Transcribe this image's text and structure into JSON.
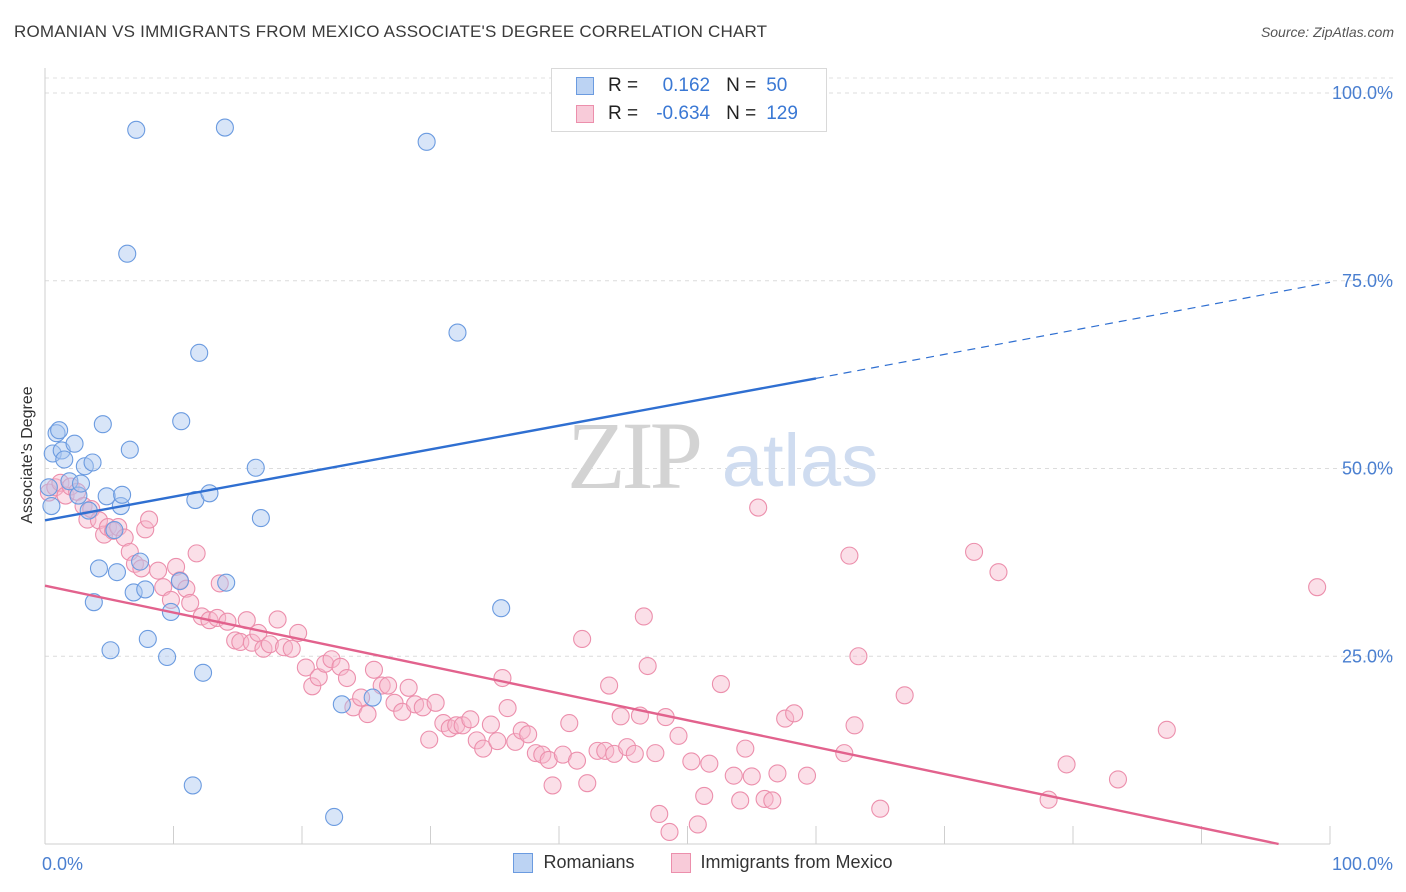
{
  "title": "ROMANIAN VS IMMIGRANTS FROM MEXICO ASSOCIATE'S DEGREE CORRELATION CHART",
  "source": "Source: ZipAtlas.com",
  "watermark": {
    "zip": "ZIP",
    "atlas": "atlas"
  },
  "legend": {
    "r_label": "R =",
    "n_label": "N =",
    "rows": [
      {
        "r": "0.162",
        "n": "50"
      },
      {
        "r": "-0.634",
        "n": "129"
      }
    ]
  },
  "colors": {
    "romanians_fill": "#a9c6ef",
    "romanians_stroke": "#6b9be0",
    "romanians_line": "#2f6fd1",
    "mexico_fill": "#f6b9cc",
    "mexico_stroke": "#ec8fac",
    "mexico_line": "#e2628d",
    "tick_text": "#4a7fd0"
  },
  "chart_data": {
    "type": "scatter",
    "title": "ROMANIAN VS IMMIGRANTS FROM MEXICO ASSOCIATE'S DEGREE CORRELATION CHART",
    "xlabel": "",
    "ylabel": "Associate's Degree",
    "xlim": [
      0,
      100
    ],
    "ylim": [
      0,
      102
    ],
    "x_tick_labels": [
      "0.0%",
      "100.0%"
    ],
    "y_ticks": [
      25,
      50,
      75,
      100
    ],
    "y_tick_labels": [
      "25.0%",
      "50.0%",
      "75.0%",
      "100.0%"
    ],
    "grid": true,
    "legend_position": "top-center",
    "series": [
      {
        "name": "Romanians",
        "r": 0.162,
        "n": 50,
        "trend": {
          "x0": 0,
          "y0": 43.1,
          "x1": 60,
          "y1": 62.0,
          "dashed_to_x": 100,
          "dashed_to_y": 74.8
        },
        "points": [
          [
            0.3,
            47.5
          ],
          [
            0.5,
            45.0
          ],
          [
            0.6,
            52.0
          ],
          [
            0.9,
            54.7
          ],
          [
            1.1,
            55.1
          ],
          [
            1.3,
            52.4
          ],
          [
            1.5,
            51.2
          ],
          [
            1.9,
            48.3
          ],
          [
            2.3,
            53.3
          ],
          [
            2.6,
            46.4
          ],
          [
            2.8,
            48.0
          ],
          [
            3.1,
            50.3
          ],
          [
            3.4,
            44.4
          ],
          [
            3.7,
            50.8
          ],
          [
            4.5,
            55.9
          ],
          [
            4.8,
            46.3
          ],
          [
            5.1,
            25.8
          ],
          [
            5.4,
            41.8
          ],
          [
            5.6,
            36.2
          ],
          [
            5.9,
            45.0
          ],
          [
            6.0,
            46.5
          ],
          [
            3.8,
            32.2
          ],
          [
            4.2,
            36.7
          ],
          [
            6.4,
            78.6
          ],
          [
            6.6,
            52.5
          ],
          [
            6.9,
            33.5
          ],
          [
            7.1,
            95.1
          ],
          [
            7.4,
            37.6
          ],
          [
            7.8,
            33.9
          ],
          [
            8.0,
            27.3
          ],
          [
            9.5,
            24.9
          ],
          [
            9.8,
            30.9
          ],
          [
            10.5,
            35.0
          ],
          [
            10.6,
            56.3
          ],
          [
            11.5,
            7.8
          ],
          [
            11.7,
            45.8
          ],
          [
            12.0,
            65.4
          ],
          [
            12.8,
            46.7
          ],
          [
            12.3,
            22.8
          ],
          [
            14.1,
            34.8
          ],
          [
            14.0,
            95.4
          ],
          [
            16.4,
            50.1
          ],
          [
            16.8,
            43.4
          ],
          [
            22.5,
            3.6
          ],
          [
            23.1,
            18.6
          ],
          [
            25.5,
            19.5
          ],
          [
            29.7,
            93.5
          ],
          [
            32.1,
            68.1
          ],
          [
            35.5,
            31.4
          ],
          [
            54.2,
            100.4
          ]
        ]
      },
      {
        "name": "Immigrants from Mexico",
        "r": -0.634,
        "n": 129,
        "trend": {
          "x0": 0,
          "y0": 34.4,
          "x1": 96,
          "y1": 0.0
        },
        "points": [
          [
            0.3,
            46.8
          ],
          [
            0.8,
            47.5
          ],
          [
            1.2,
            48.1
          ],
          [
            1.6,
            46.4
          ],
          [
            2.0,
            47.6
          ],
          [
            2.5,
            46.9
          ],
          [
            3.0,
            45.0
          ],
          [
            3.3,
            43.2
          ],
          [
            3.6,
            44.6
          ],
          [
            4.2,
            43.1
          ],
          [
            4.6,
            41.2
          ],
          [
            4.9,
            42.2
          ],
          [
            5.3,
            41.7
          ],
          [
            5.7,
            42.2
          ],
          [
            6.2,
            40.8
          ],
          [
            6.6,
            38.9
          ],
          [
            7.0,
            37.3
          ],
          [
            7.5,
            36.7
          ],
          [
            7.8,
            41.9
          ],
          [
            8.1,
            43.2
          ],
          [
            8.8,
            36.4
          ],
          [
            9.2,
            34.2
          ],
          [
            9.8,
            32.5
          ],
          [
            10.2,
            36.9
          ],
          [
            10.5,
            35.1
          ],
          [
            11.0,
            34.0
          ],
          [
            11.3,
            32.1
          ],
          [
            11.8,
            38.7
          ],
          [
            12.2,
            30.3
          ],
          [
            12.8,
            29.8
          ],
          [
            13.4,
            30.1
          ],
          [
            13.6,
            34.7
          ],
          [
            14.2,
            29.6
          ],
          [
            14.8,
            27.1
          ],
          [
            15.2,
            26.9
          ],
          [
            15.7,
            29.8
          ],
          [
            16.1,
            26.8
          ],
          [
            16.6,
            28.1
          ],
          [
            17.0,
            26.0
          ],
          [
            17.5,
            26.6
          ],
          [
            18.1,
            29.9
          ],
          [
            18.6,
            26.2
          ],
          [
            19.2,
            26.0
          ],
          [
            19.7,
            28.1
          ],
          [
            20.3,
            23.5
          ],
          [
            20.8,
            21.0
          ],
          [
            21.3,
            22.2
          ],
          [
            21.8,
            24.0
          ],
          [
            22.3,
            24.6
          ],
          [
            23.0,
            23.6
          ],
          [
            23.5,
            22.1
          ],
          [
            24.0,
            18.2
          ],
          [
            24.6,
            19.5
          ],
          [
            25.1,
            17.3
          ],
          [
            25.6,
            23.2
          ],
          [
            26.2,
            21.1
          ],
          [
            26.7,
            21.1
          ],
          [
            27.2,
            18.8
          ],
          [
            27.8,
            17.6
          ],
          [
            28.3,
            20.8
          ],
          [
            28.8,
            18.6
          ],
          [
            29.4,
            18.2
          ],
          [
            29.9,
            13.9
          ],
          [
            30.4,
            18.8
          ],
          [
            31.0,
            16.1
          ],
          [
            31.5,
            15.4
          ],
          [
            32.0,
            15.8
          ],
          [
            32.5,
            15.8
          ],
          [
            33.1,
            16.6
          ],
          [
            33.6,
            13.8
          ],
          [
            34.1,
            12.7
          ],
          [
            34.7,
            15.9
          ],
          [
            35.2,
            13.7
          ],
          [
            35.6,
            22.1
          ],
          [
            36.0,
            18.1
          ],
          [
            36.6,
            13.6
          ],
          [
            37.1,
            15.1
          ],
          [
            37.6,
            14.6
          ],
          [
            38.2,
            12.1
          ],
          [
            38.7,
            11.9
          ],
          [
            39.2,
            11.2
          ],
          [
            39.5,
            7.8
          ],
          [
            40.3,
            11.9
          ],
          [
            40.8,
            16.1
          ],
          [
            41.4,
            11.1
          ],
          [
            41.8,
            27.3
          ],
          [
            42.2,
            8.1
          ],
          [
            43.0,
            12.4
          ],
          [
            43.6,
            12.4
          ],
          [
            43.9,
            21.1
          ],
          [
            44.3,
            12.0
          ],
          [
            44.8,
            17.0
          ],
          [
            45.3,
            12.9
          ],
          [
            45.9,
            12.0
          ],
          [
            46.3,
            17.1
          ],
          [
            46.6,
            30.3
          ],
          [
            46.9,
            23.7
          ],
          [
            47.5,
            12.1
          ],
          [
            47.8,
            4.0
          ],
          [
            48.3,
            16.9
          ],
          [
            48.6,
            1.6
          ],
          [
            49.3,
            14.4
          ],
          [
            50.3,
            11.0
          ],
          [
            50.8,
            2.6
          ],
          [
            51.3,
            6.4
          ],
          [
            51.7,
            10.7
          ],
          [
            52.6,
            21.3
          ],
          [
            53.6,
            9.1
          ],
          [
            54.1,
            5.8
          ],
          [
            54.5,
            12.7
          ],
          [
            55.0,
            9.0
          ],
          [
            55.5,
            44.8
          ],
          [
            56.0,
            6.0
          ],
          [
            56.6,
            5.8
          ],
          [
            57.0,
            9.4
          ],
          [
            57.6,
            16.7
          ],
          [
            58.3,
            17.4
          ],
          [
            59.3,
            9.1
          ],
          [
            62.2,
            12.1
          ],
          [
            62.6,
            38.4
          ],
          [
            63.0,
            15.8
          ],
          [
            63.3,
            25.0
          ],
          [
            65.0,
            4.7
          ],
          [
            66.9,
            19.8
          ],
          [
            72.3,
            38.9
          ],
          [
            74.2,
            36.2
          ],
          [
            78.1,
            5.9
          ],
          [
            79.5,
            10.6
          ],
          [
            83.5,
            8.6
          ],
          [
            87.3,
            15.2
          ],
          [
            99.0,
            34.2
          ]
        ]
      }
    ]
  }
}
